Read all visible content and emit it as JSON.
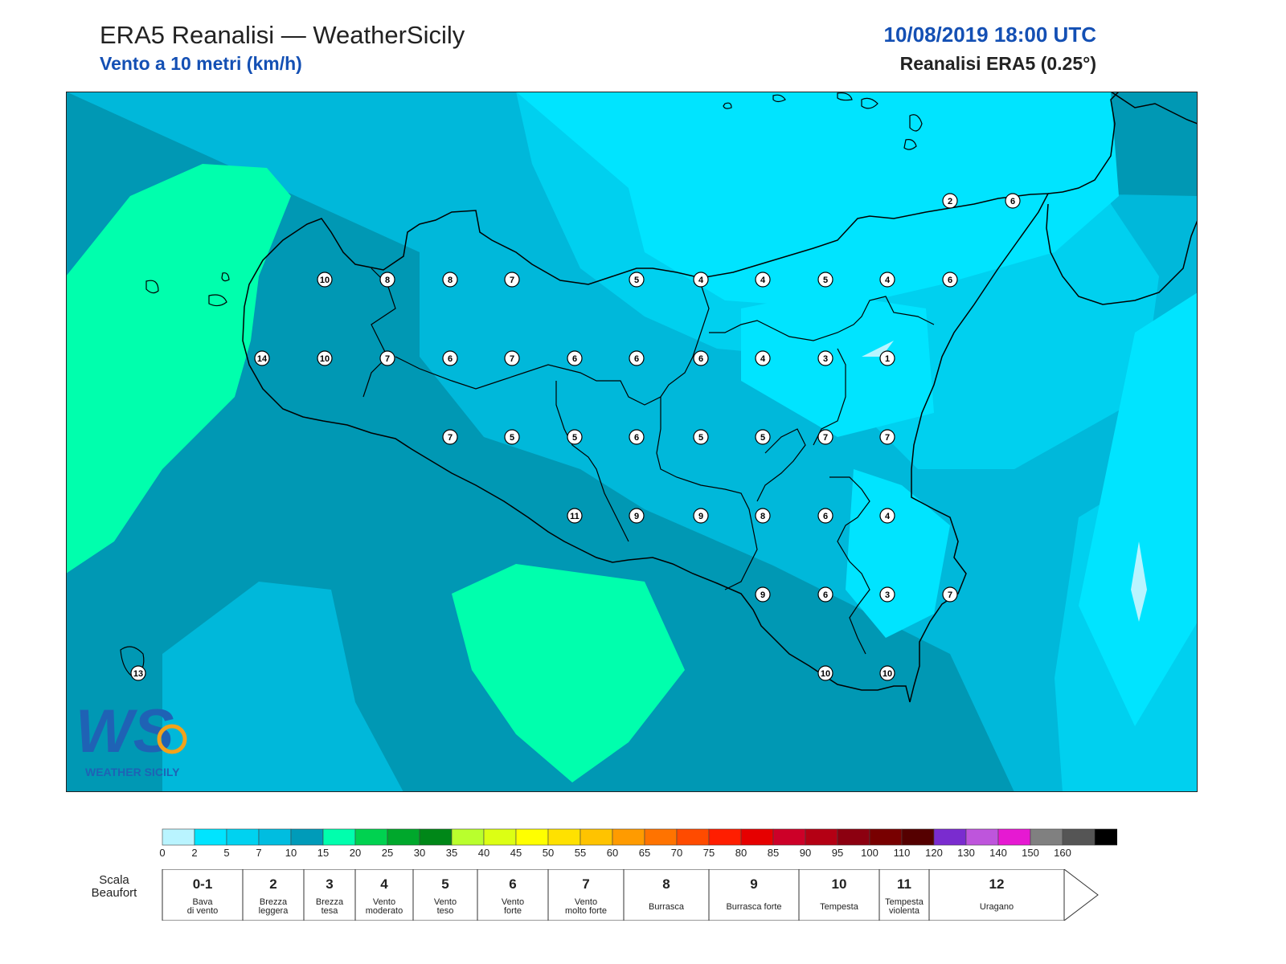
{
  "header": {
    "title": "ERA5 Reanalisi — WeatherSicily",
    "subtitle": "Vento a 10 metri (km/h)",
    "datetime": "10/08/2019 18:00 UTC",
    "source": "Reanalisi ERA5 (0.25°)"
  },
  "logo": {
    "text": "WS",
    "caption": "WEATHER SICILY"
  },
  "stations": [
    {
      "v": "2"
    },
    {
      "v": "6"
    },
    {
      "v": "10"
    },
    {
      "v": "8"
    },
    {
      "v": "8"
    },
    {
      "v": "7"
    },
    {
      "v": "5"
    },
    {
      "v": "4"
    },
    {
      "v": "4"
    },
    {
      "v": "5"
    },
    {
      "v": "4"
    },
    {
      "v": "6"
    },
    {
      "v": "14"
    },
    {
      "v": "10"
    },
    {
      "v": "7"
    },
    {
      "v": "6"
    },
    {
      "v": "7"
    },
    {
      "v": "6"
    },
    {
      "v": "6"
    },
    {
      "v": "6"
    },
    {
      "v": "4"
    },
    {
      "v": "3"
    },
    {
      "v": "1"
    },
    {
      "v": "7"
    },
    {
      "v": "5"
    },
    {
      "v": "5"
    },
    {
      "v": "6"
    },
    {
      "v": "5"
    },
    {
      "v": "5"
    },
    {
      "v": "7"
    },
    {
      "v": "7"
    },
    {
      "v": "11"
    },
    {
      "v": "9"
    },
    {
      "v": "9"
    },
    {
      "v": "8"
    },
    {
      "v": "6"
    },
    {
      "v": "4"
    },
    {
      "v": "9"
    },
    {
      "v": "6"
    },
    {
      "v": "3"
    },
    {
      "v": "7"
    },
    {
      "v": "13"
    },
    {
      "v": "10"
    },
    {
      "v": "10"
    }
  ],
  "colorbar": {
    "ticks": [
      "0",
      "2",
      "5",
      "7",
      "10",
      "15",
      "20",
      "25",
      "30",
      "35",
      "40",
      "45",
      "50",
      "55",
      "60",
      "65",
      "70",
      "75",
      "80",
      "85",
      "90",
      "95",
      "100",
      "110",
      "120",
      "130",
      "140",
      "150",
      "160"
    ],
    "colors": [
      "#b9f4ff",
      "#00e4ff",
      "#00d2f0",
      "#00bde0",
      "#009bb9",
      "#00ffad",
      "#00d250",
      "#00a82c",
      "#008718",
      "#b9ff2d",
      "#dcff14",
      "#ffff00",
      "#ffe100",
      "#ffc300",
      "#ff9b00",
      "#ff7300",
      "#ff4b00",
      "#ff1e00",
      "#e60000",
      "#cd0028",
      "#b40014",
      "#8c0010",
      "#780000",
      "#550000",
      "#7a2ccf",
      "#be55dc",
      "#e619d2",
      "#808080",
      "#555555",
      "#000000",
      "#8a4a23",
      "#c8844b"
    ]
  },
  "beaufort": {
    "label": "Scala Beaufort",
    "classes": [
      {
        "force": "0-1",
        "name": "Bava di vento"
      },
      {
        "force": "2",
        "name": "Brezza leggera"
      },
      {
        "force": "3",
        "name": "Brezza tesa"
      },
      {
        "force": "4",
        "name": "Vento moderato"
      },
      {
        "force": "5",
        "name": "Vento teso"
      },
      {
        "force": "6",
        "name": "Vento forte"
      },
      {
        "force": "7",
        "name": "Vento molto forte"
      },
      {
        "force": "8",
        "name": "Burrasca"
      },
      {
        "force": "9",
        "name": "Burrasca forte"
      },
      {
        "force": "10",
        "name": "Tempesta"
      },
      {
        "force": "11",
        "name": "Tempesta violenta"
      },
      {
        "force": "12",
        "name": "Uragano"
      }
    ]
  }
}
